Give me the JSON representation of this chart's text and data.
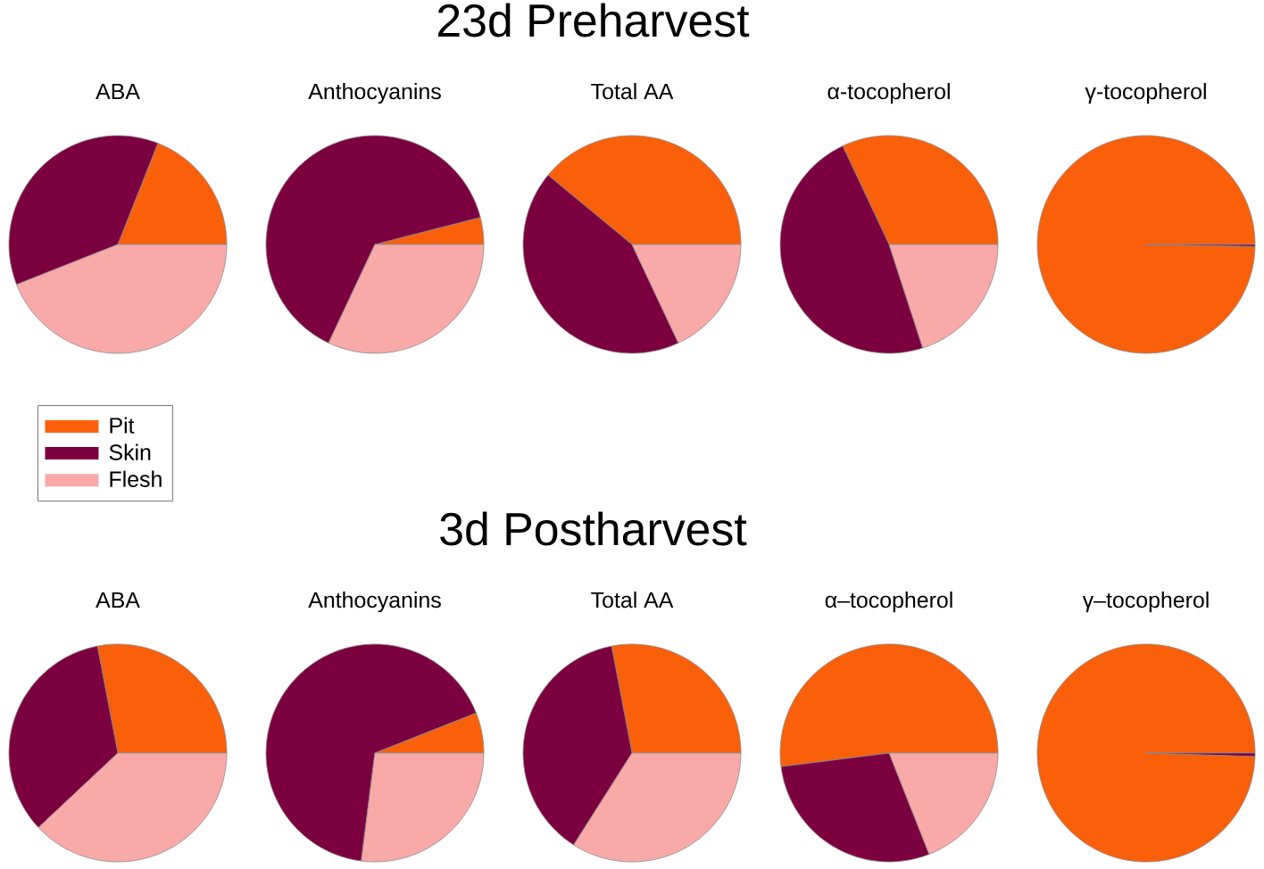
{
  "chart_data": [
    {
      "type": "other",
      "title": "23d Preharvest"
    },
    {
      "type": "pie",
      "title": "ABA",
      "categories": [
        "Pit",
        "Skin",
        "Flesh"
      ],
      "values": [
        19,
        37,
        44
      ],
      "colors": [
        "#fa5f0a",
        "#7c0040",
        "#f9a9a8"
      ],
      "legend": "bottom left"
    },
    {
      "type": "pie",
      "title": "Anthocyanins",
      "categories": [
        null,
        null,
        null
      ],
      "values": [
        4,
        64,
        32
      ],
      "colors": [
        "#fa5f0a",
        "#7c0040",
        "#f9a9a8"
      ]
    },
    {
      "type": "pie",
      "title": "Total AA",
      "categories": [
        null,
        null,
        null
      ],
      "values": [
        39,
        43,
        18
      ],
      "colors": [
        "#fa5f0a",
        "#7c0040",
        "#f9a9a8"
      ]
    },
    {
      "type": "pie",
      "title": "α-tocopherol",
      "categories": [
        null,
        null,
        null
      ],
      "values": [
        32,
        48,
        20
      ],
      "colors": [
        "#fa5f0a",
        "#7c0040",
        "#f9a9a8"
      ]
    },
    {
      "type": "pie",
      "title": "γ-tocopherol",
      "categories": [
        null,
        null,
        null
      ],
      "values": [
        99.7,
        0.3,
        0
      ],
      "colors": [
        "#fa5f0a",
        "#7c0040",
        "#f9a9a8"
      ]
    },
    {
      "type": "other",
      "title": "3d Postharvest"
    },
    {
      "type": "pie",
      "title": "ABA",
      "categories": [
        null,
        null,
        null
      ],
      "values": [
        28,
        34,
        38
      ],
      "colors": [
        "#fa5f0a",
        "#7c0040",
        "#f9a9a8"
      ]
    },
    {
      "type": "pie",
      "title": "Anthocyanins",
      "categories": [
        null,
        null,
        null
      ],
      "values": [
        6,
        67,
        27
      ],
      "colors": [
        "#fa5f0a",
        "#7c0040",
        "#f9a9a8"
      ]
    },
    {
      "type": "pie",
      "title": "Total AA",
      "categories": [
        null,
        null,
        null
      ],
      "values": [
        28,
        38,
        34
      ],
      "colors": [
        "#fa5f0a",
        "#7c0040",
        "#f9a9a8"
      ]
    },
    {
      "type": "pie",
      "title": "α–tocopherol",
      "categories": [
        null,
        null,
        null
      ],
      "values": [
        52,
        29,
        19
      ],
      "colors": [
        "#fa5f0a",
        "#7c0040",
        "#f9a9a8"
      ]
    },
    {
      "type": "pie",
      "title": "γ–tocopherol",
      "categories": [
        null,
        null,
        null
      ],
      "values": [
        99.5,
        0.5,
        0
      ],
      "colors": [
        "#fa5f0a",
        "#7c0040",
        "#f9a9a8"
      ]
    }
  ]
}
